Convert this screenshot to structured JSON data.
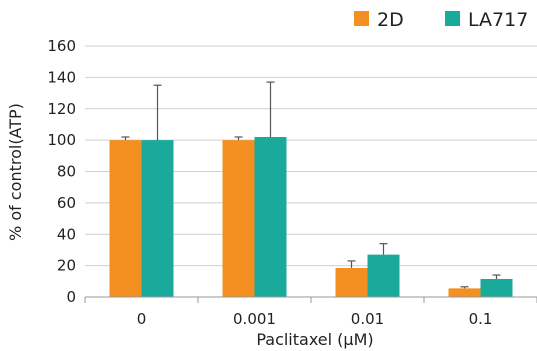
{
  "chart_data": {
    "type": "bar",
    "title": "",
    "xlabel": "Paclitaxel (μM)",
    "ylabel": "% of control(ATP)",
    "categories": [
      "0",
      "0.001",
      "0.01",
      "0.1"
    ],
    "ylim": [
      0,
      160
    ],
    "yticks": [
      0,
      20,
      40,
      60,
      80,
      100,
      120,
      140,
      160
    ],
    "grid": "horizontal",
    "legend_position": "top-right",
    "series": [
      {
        "name": "2D",
        "color": "#f39021",
        "values": [
          100,
          100,
          18.5,
          5.5
        ],
        "errors": [
          2,
          2,
          4.5,
          1
        ]
      },
      {
        "name": "LA717",
        "color": "#1aaa9b",
        "values": [
          100,
          102,
          27,
          11.5
        ],
        "errors": [
          35,
          35,
          7,
          2.5
        ]
      }
    ]
  }
}
